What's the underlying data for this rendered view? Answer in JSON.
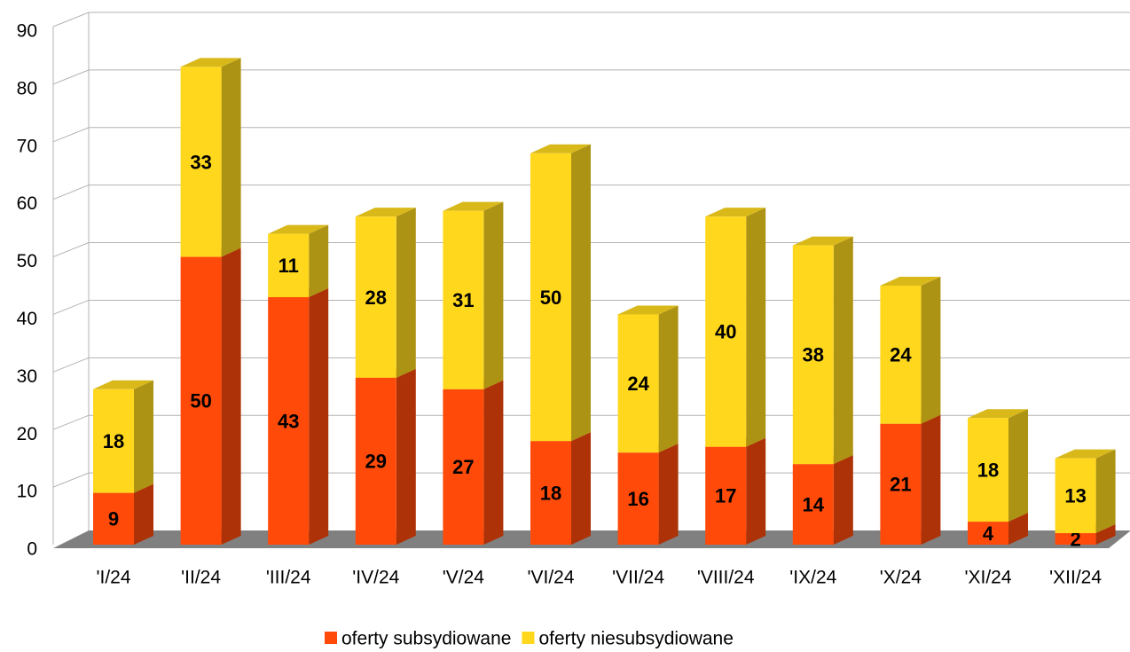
{
  "chart_data": {
    "type": "bar",
    "stacked": true,
    "three_d": true,
    "categories": [
      "'I/24",
      "'II/24",
      "'III/24",
      "'IV/24",
      "'V/24",
      "'VI/24",
      "'VII/24",
      "'VIII/24",
      "'IX/24",
      "'X/24",
      "'XI/24",
      "'XII/24"
    ],
    "series": [
      {
        "name": "oferty subsydiowane",
        "color": "#ff4a0a",
        "values": [
          9,
          50,
          43,
          29,
          27,
          18,
          16,
          17,
          14,
          21,
          4,
          2
        ]
      },
      {
        "name": "oferty niesubsydiowane",
        "color": "#ffd81e",
        "values": [
          18,
          33,
          11,
          28,
          31,
          50,
          24,
          40,
          38,
          24,
          18,
          13
        ]
      }
    ],
    "ylim": [
      0,
      90
    ],
    "yticks": [
      0,
      10,
      20,
      30,
      40,
      50,
      60,
      70,
      80,
      90
    ],
    "grid": true,
    "legend": "bottom"
  }
}
